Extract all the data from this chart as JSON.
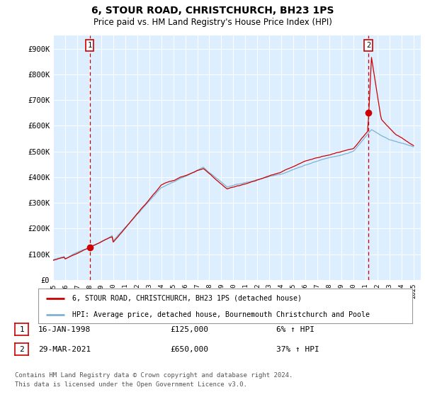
{
  "title": "6, STOUR ROAD, CHRISTCHURCH, BH23 1PS",
  "subtitle": "Price paid vs. HM Land Registry's House Price Index (HPI)",
  "ylabel_ticks": [
    "£0",
    "£100K",
    "£200K",
    "£300K",
    "£400K",
    "£500K",
    "£600K",
    "£700K",
    "£800K",
    "£900K"
  ],
  "ytick_values": [
    0,
    100000,
    200000,
    300000,
    400000,
    500000,
    600000,
    700000,
    800000,
    900000
  ],
  "ylim": [
    0,
    950000
  ],
  "xlim_start": 1995.4,
  "xlim_end": 2025.6,
  "sale1_year": 1998.04,
  "sale1_price": 125000,
  "sale2_year": 2021.24,
  "sale2_price": 650000,
  "red_color": "#cc0000",
  "blue_color": "#7fb3d3",
  "plot_bg_color": "#ddeeff",
  "grid_color": "#ffffff",
  "background_color": "#ffffff",
  "legend1": "6, STOUR ROAD, CHRISTCHURCH, BH23 1PS (detached house)",
  "legend2": "HPI: Average price, detached house, Bournemouth Christchurch and Poole",
  "footnote1": "Contains HM Land Registry data © Crown copyright and database right 2024.",
  "footnote2": "This data is licensed under the Open Government Licence v3.0."
}
